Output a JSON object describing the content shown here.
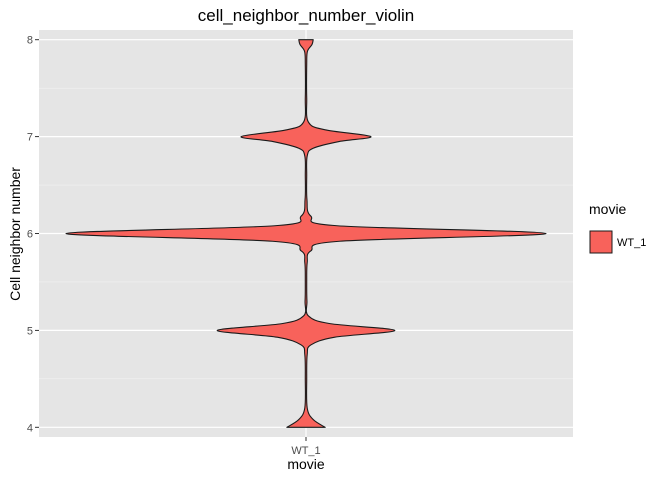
{
  "chart_data": {
    "type": "violin",
    "title": "cell_neighbor_number_violin",
    "xlabel": "movie",
    "ylabel": "Cell neighbor number",
    "categories": [
      "WT_1"
    ],
    "y_ticks": [
      4,
      5,
      6,
      7,
      8
    ],
    "y_tick_labels": [
      "4",
      "5",
      "6",
      "7",
      "8"
    ],
    "ylim": [
      3.9,
      8.1
    ],
    "grid": true,
    "background": "#e5e5e5",
    "fill_color": "#f8625b",
    "outline_color": "#1a1a1a",
    "legend": {
      "title": "movie",
      "entries": [
        "WT_1"
      ],
      "placement": "right"
    },
    "series": [
      {
        "category": "WT_1",
        "range": [
          4,
          8
        ],
        "density_profile": [
          {
            "y": 4.0,
            "w": 0.08
          },
          {
            "y": 4.08,
            "w": 0.03
          },
          {
            "y": 4.2,
            "w": 0.005
          },
          {
            "y": 4.5,
            "w": 0.003
          },
          {
            "y": 4.75,
            "w": 0.005
          },
          {
            "y": 4.85,
            "w": 0.02
          },
          {
            "y": 4.93,
            "w": 0.12
          },
          {
            "y": 5.0,
            "w": 0.37
          },
          {
            "y": 5.07,
            "w": 0.1
          },
          {
            "y": 5.15,
            "w": 0.01
          },
          {
            "y": 5.3,
            "w": 0.004
          },
          {
            "y": 5.5,
            "w": 0.003
          },
          {
            "y": 5.7,
            "w": 0.005
          },
          {
            "y": 5.82,
            "w": 0.02
          },
          {
            "y": 5.92,
            "w": 0.14
          },
          {
            "y": 6.0,
            "w": 1.0
          },
          {
            "y": 6.08,
            "w": 0.13
          },
          {
            "y": 6.18,
            "w": 0.02
          },
          {
            "y": 6.35,
            "w": 0.004
          },
          {
            "y": 6.6,
            "w": 0.003
          },
          {
            "y": 6.8,
            "w": 0.005
          },
          {
            "y": 6.88,
            "w": 0.03
          },
          {
            "y": 6.95,
            "w": 0.14
          },
          {
            "y": 7.0,
            "w": 0.27
          },
          {
            "y": 7.07,
            "w": 0.08
          },
          {
            "y": 7.15,
            "w": 0.01
          },
          {
            "y": 7.4,
            "w": 0.003
          },
          {
            "y": 7.75,
            "w": 0.003
          },
          {
            "y": 7.88,
            "w": 0.006
          },
          {
            "y": 7.95,
            "w": 0.025
          },
          {
            "y": 8.0,
            "w": 0.03
          }
        ]
      }
    ]
  }
}
